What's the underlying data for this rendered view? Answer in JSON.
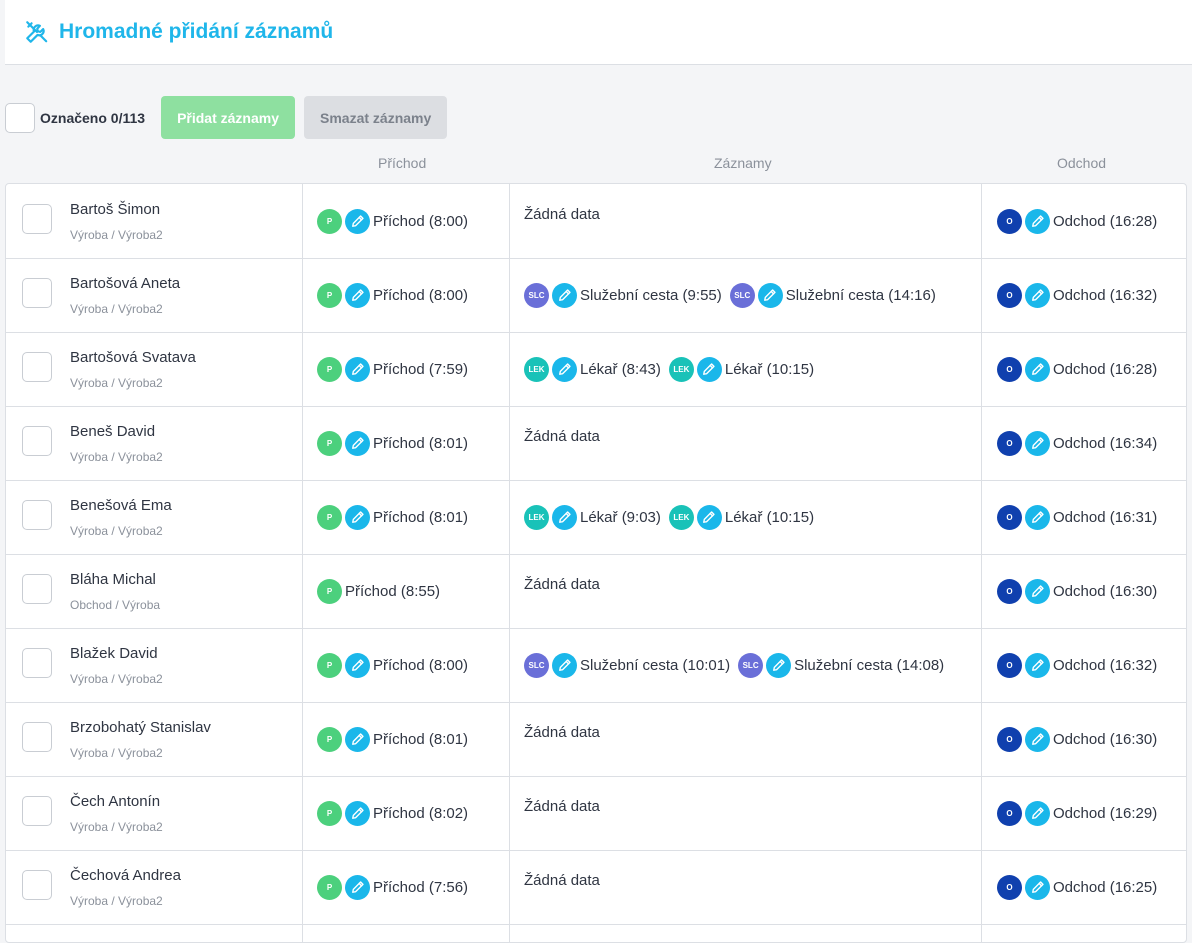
{
  "header": {
    "title": "Hromadné přidání záznamů",
    "icon": "tools-icon"
  },
  "toolbar": {
    "selected_label": "Označeno 0/113",
    "add_label": "Přidat záznamy",
    "delete_label": "Smazat záznamy"
  },
  "columns": {
    "arrival": "Příchod",
    "records": "Záznamy",
    "departure": "Odchod"
  },
  "colors": {
    "accent": "#1fb6ea",
    "arrival": "#4cd07d",
    "departure": "#1040ae",
    "trip": "#6a6fd8",
    "doctor": "#19c2b8"
  },
  "rows": [
    {
      "name": "Bartoš Šimon",
      "dept": "Výroba / Výroba2",
      "arrival": {
        "badge": "P",
        "text": "Příchod (8:00)",
        "editable": true
      },
      "records": [],
      "no_data": "Žádná data",
      "departure": {
        "badge": "O",
        "text": "Odchod (16:28)"
      }
    },
    {
      "name": "Bartošová Aneta",
      "dept": "Výroba / Výroba2",
      "arrival": {
        "badge": "P",
        "text": "Příchod (8:00)",
        "editable": true
      },
      "records": [
        {
          "badge": "SLC",
          "text": "Služební cesta (9:55)"
        },
        {
          "badge": "SLC",
          "text": "Služební cesta (14:16)"
        }
      ],
      "departure": {
        "badge": "O",
        "text": "Odchod (16:32)"
      }
    },
    {
      "name": "Bartošová Svatava",
      "dept": "Výroba / Výroba2",
      "arrival": {
        "badge": "P",
        "text": "Příchod (7:59)",
        "editable": true
      },
      "records": [
        {
          "badge": "LEK",
          "text": "Lékař (8:43)"
        },
        {
          "badge": "LEK",
          "text": "Lékař (10:15)"
        }
      ],
      "departure": {
        "badge": "O",
        "text": "Odchod (16:28)"
      }
    },
    {
      "name": "Beneš David",
      "dept": "Výroba / Výroba2",
      "arrival": {
        "badge": "P",
        "text": "Příchod (8:01)",
        "editable": true
      },
      "records": [],
      "no_data": "Žádná data",
      "departure": {
        "badge": "O",
        "text": "Odchod (16:34)"
      }
    },
    {
      "name": "Benešová Ema",
      "dept": "Výroba / Výroba2",
      "arrival": {
        "badge": "P",
        "text": "Příchod (8:01)",
        "editable": true
      },
      "records": [
        {
          "badge": "LEK",
          "text": "Lékař (9:03)"
        },
        {
          "badge": "LEK",
          "text": "Lékař (10:15)"
        }
      ],
      "departure": {
        "badge": "O",
        "text": "Odchod (16:31)"
      }
    },
    {
      "name": "Bláha Michal",
      "dept": "Obchod / Výroba",
      "arrival": {
        "badge": "P",
        "text": "Příchod (8:55)",
        "editable": false
      },
      "records": [],
      "no_data": "Žádná data",
      "departure": {
        "badge": "O",
        "text": "Odchod (16:30)"
      }
    },
    {
      "name": "Blažek David",
      "dept": "Výroba / Výroba2",
      "arrival": {
        "badge": "P",
        "text": "Příchod (8:00)",
        "editable": true
      },
      "records": [
        {
          "badge": "SLC",
          "text": "Služební cesta (10:01)"
        },
        {
          "badge": "SLC",
          "text": "Služební cesta (14:08)"
        }
      ],
      "departure": {
        "badge": "O",
        "text": "Odchod (16:32)"
      }
    },
    {
      "name": "Brzobohatý Stanislav",
      "dept": "Výroba / Výroba2",
      "arrival": {
        "badge": "P",
        "text": "Příchod (8:01)",
        "editable": true
      },
      "records": [],
      "no_data": "Žádná data",
      "departure": {
        "badge": "O",
        "text": "Odchod (16:30)"
      }
    },
    {
      "name": "Čech Antonín",
      "dept": "Výroba / Výroba2",
      "arrival": {
        "badge": "P",
        "text": "Příchod (8:02)",
        "editable": true
      },
      "records": [],
      "no_data": "Žádná data",
      "departure": {
        "badge": "O",
        "text": "Odchod (16:29)"
      }
    },
    {
      "name": "Čechová Andrea",
      "dept": "Výroba / Výroba2",
      "arrival": {
        "badge": "P",
        "text": "Příchod (7:56)",
        "editable": true
      },
      "records": [],
      "no_data": "Žádná data",
      "departure": {
        "badge": "O",
        "text": "Odchod (16:25)"
      }
    }
  ]
}
